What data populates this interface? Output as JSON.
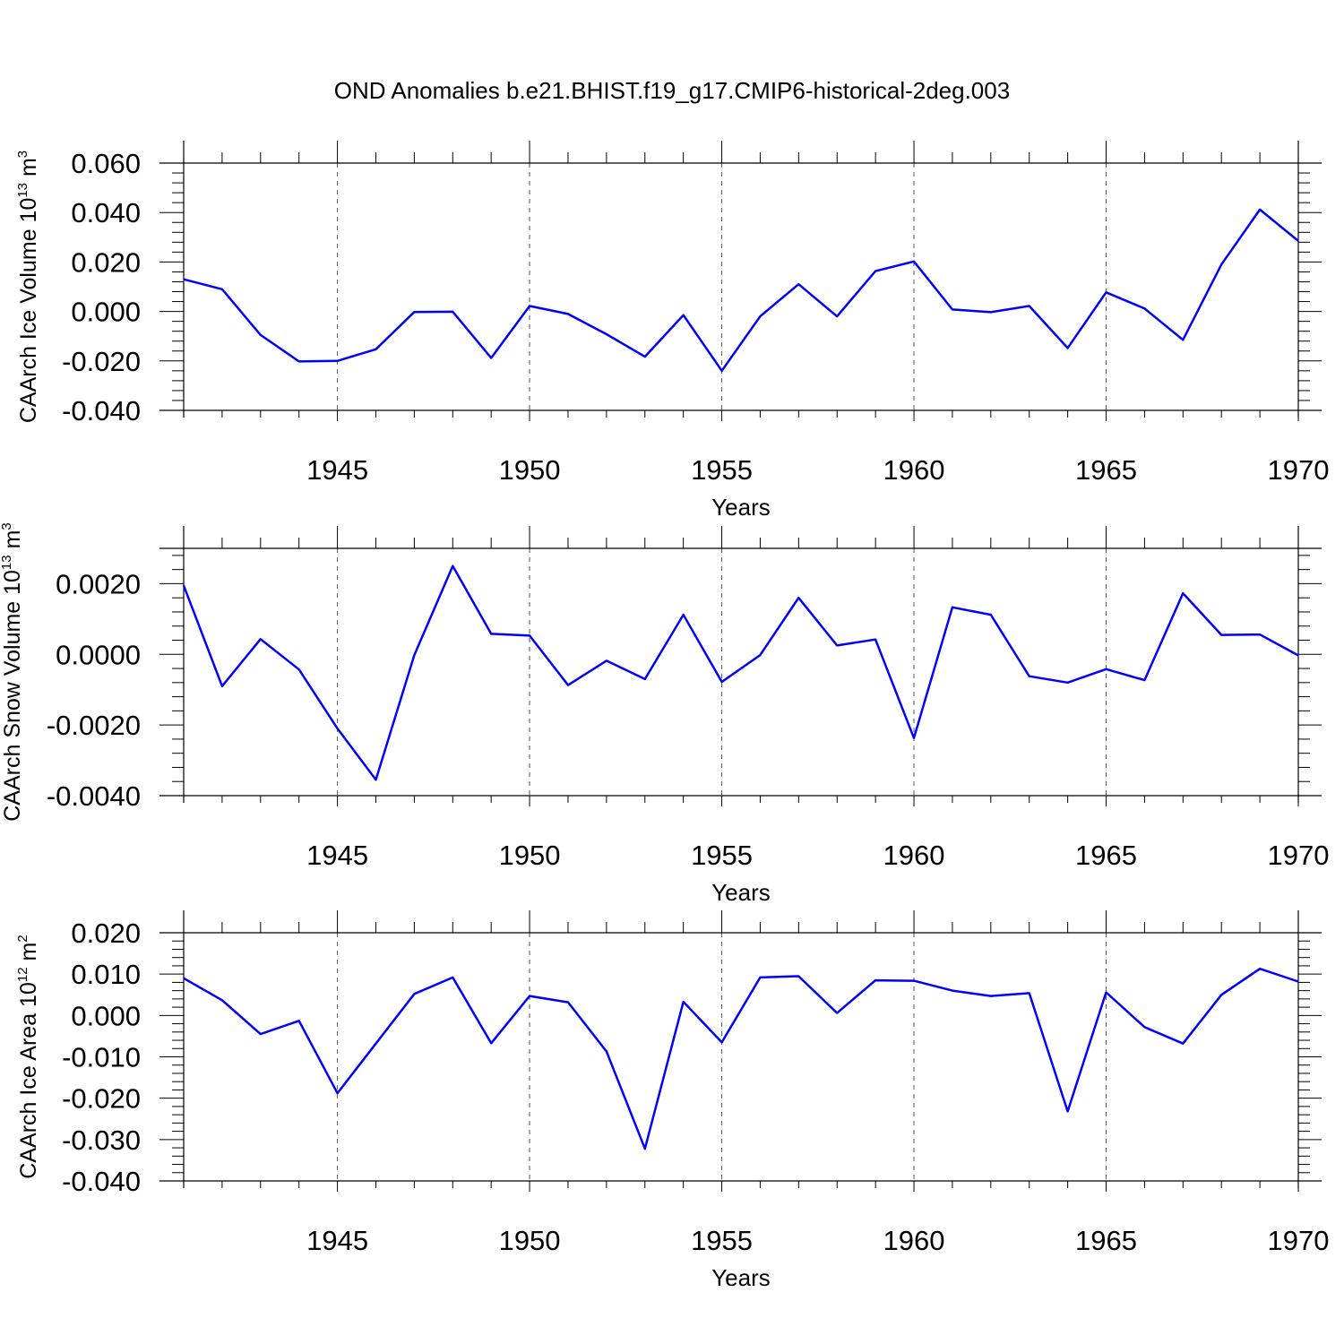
{
  "title": "OND Anomalies b.e21.BHIST.f19_g17.CMIP6-historical-2deg.003",
  "colors": {
    "line": "#0000ff",
    "axis": "#000000",
    "grid": "#555555"
  },
  "chart_data": [
    {
      "type": "line",
      "xlabel": "Years",
      "ylabel": "CAArch Ice Volume 10",
      "ylabel_exp": "13",
      "ylabel_unit": " m",
      "ylabel_unit_exp": "3",
      "xlim": [
        1941,
        1970
      ],
      "ylim": [
        -0.04,
        0.06
      ],
      "yticks": [
        -0.04,
        -0.02,
        0.0,
        0.02,
        0.04,
        0.06
      ],
      "ytick_labels": [
        "-0.040",
        "-0.020",
        "0.000",
        "0.020",
        "0.040",
        "0.060"
      ],
      "xticks": [
        1945,
        1950,
        1955,
        1960,
        1965,
        1970
      ],
      "xtick_labels": [
        "1945",
        "1950",
        "1955",
        "1960",
        "1965",
        "1970"
      ],
      "grid": "vertical dashed at major x ticks",
      "x": [
        1941,
        1942,
        1943,
        1944,
        1945,
        1946,
        1947,
        1948,
        1949,
        1950,
        1951,
        1952,
        1953,
        1954,
        1955,
        1956,
        1957,
        1958,
        1959,
        1960,
        1961,
        1962,
        1963,
        1964,
        1965,
        1966,
        1967,
        1968,
        1969,
        1970
      ],
      "values": [
        0.013,
        0.009,
        -0.0095,
        -0.0202,
        -0.02,
        -0.0153,
        -0.0002,
        -0.0001,
        -0.0188,
        0.0022,
        -0.001,
        -0.0092,
        -0.0183,
        -0.0015,
        -0.024,
        -0.002,
        0.011,
        -0.002,
        0.0163,
        0.0202,
        0.0008,
        -0.0003,
        0.0022,
        -0.0148,
        0.0077,
        0.0012,
        -0.0115,
        0.019,
        0.0412,
        0.0285
      ]
    },
    {
      "type": "line",
      "xlabel": "Years",
      "ylabel": "CAArch Snow Volume 10",
      "ylabel_exp": "13",
      "ylabel_unit": " m",
      "ylabel_unit_exp": "3",
      "xlim": [
        1941,
        1970
      ],
      "ylim": [
        -0.004,
        0.003
      ],
      "yticks": [
        -0.004,
        -0.002,
        0.0,
        0.002
      ],
      "ytick_labels": [
        "-0.0040",
        "-0.0020",
        "0.0000",
        "0.0020"
      ],
      "xticks": [
        1945,
        1950,
        1955,
        1960,
        1965,
        1970
      ],
      "xtick_labels": [
        "1945",
        "1950",
        "1955",
        "1960",
        "1965",
        "1970"
      ],
      "grid": "vertical dashed at major x ticks",
      "x": [
        1941,
        1942,
        1943,
        1944,
        1945,
        1946,
        1947,
        1948,
        1949,
        1950,
        1951,
        1952,
        1953,
        1954,
        1955,
        1956,
        1957,
        1958,
        1959,
        1960,
        1961,
        1962,
        1963,
        1964,
        1965,
        1966,
        1967,
        1968,
        1969,
        1970
      ],
      "values": [
        0.00195,
        -0.0009,
        0.00043,
        -0.00043,
        -0.0021,
        -0.00355,
        -2e-05,
        0.0025,
        0.00058,
        0.00053,
        -0.00087,
        -0.00018,
        -0.0007,
        0.00112,
        -0.00078,
        -2e-05,
        0.0016,
        0.00025,
        0.00042,
        -0.00237,
        0.00133,
        0.00112,
        -0.00062,
        -0.0008,
        -0.00042,
        -0.00073,
        0.00173,
        0.00055,
        0.00056,
        -3e-05
      ]
    },
    {
      "type": "line",
      "xlabel": "Years",
      "ylabel": "CAArch Ice Area 10",
      "ylabel_exp": "12",
      "ylabel_unit": " m",
      "ylabel_unit_exp": "2",
      "xlim": [
        1941,
        1970
      ],
      "ylim": [
        -0.04,
        0.02
      ],
      "yticks": [
        -0.04,
        -0.03,
        -0.02,
        -0.01,
        0.0,
        0.01,
        0.02
      ],
      "ytick_labels": [
        "-0.040",
        "-0.030",
        "-0.020",
        "-0.010",
        "0.000",
        "0.010",
        "0.020"
      ],
      "xticks": [
        1945,
        1950,
        1955,
        1960,
        1965,
        1970
      ],
      "xtick_labels": [
        "1945",
        "1950",
        "1955",
        "1960",
        "1965",
        "1970"
      ],
      "grid": "vertical dashed at major x ticks",
      "x": [
        1941,
        1942,
        1943,
        1944,
        1945,
        1946,
        1947,
        1948,
        1949,
        1950,
        1951,
        1952,
        1953,
        1954,
        1955,
        1956,
        1957,
        1958,
        1959,
        1960,
        1961,
        1962,
        1963,
        1964,
        1965,
        1966,
        1967,
        1968,
        1969,
        1970
      ],
      "values": [
        0.009,
        0.0037,
        -0.0045,
        -0.0013,
        -0.0188,
        -0.0068,
        0.0052,
        0.0092,
        -0.0067,
        0.0047,
        0.0032,
        -0.0087,
        -0.0322,
        0.0033,
        -0.0065,
        0.0092,
        0.0095,
        0.0006,
        0.0085,
        0.0084,
        0.006,
        0.0047,
        0.0054,
        -0.0232,
        0.0056,
        -0.0028,
        -0.0068,
        0.005,
        0.0113,
        0.0082
      ]
    }
  ]
}
